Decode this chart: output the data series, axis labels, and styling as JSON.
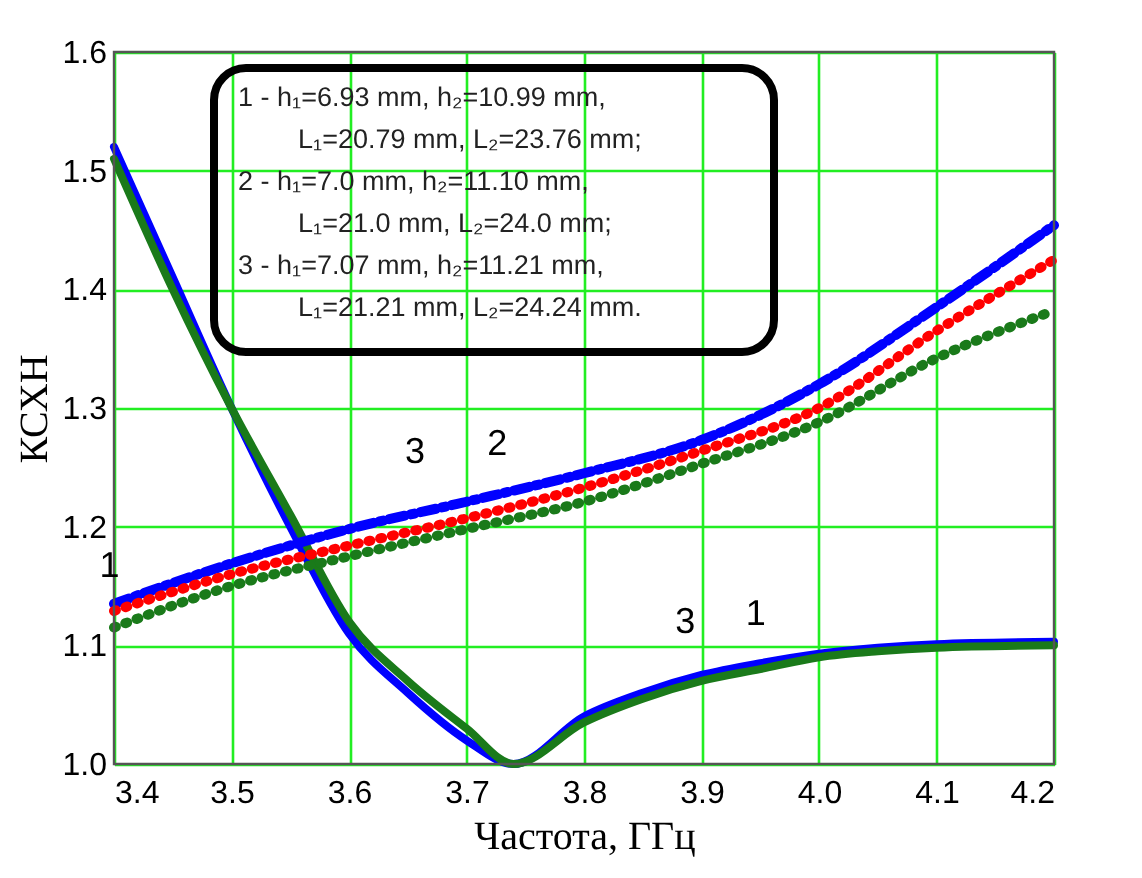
{
  "chart_data": {
    "type": "line",
    "xlabel": "Частота, ГГц",
    "ylabel": "КСХН",
    "xlim": [
      3.4,
      4.2
    ],
    "ylim": [
      1.0,
      1.6
    ],
    "xticks": [
      {
        "value": 3.4,
        "label": "3.4"
      },
      {
        "value": 3.5,
        "label": "3.5"
      },
      {
        "value": 3.6,
        "label": "3.6"
      },
      {
        "value": 3.7,
        "label": "3.7"
      },
      {
        "value": 3.8,
        "label": "3.8"
      },
      {
        "value": 3.9,
        "label": "3.9"
      },
      {
        "value": 4.0,
        "label": "4.0"
      },
      {
        "value": 4.1,
        "label": "4.1"
      },
      {
        "value": 4.2,
        "label": "4.2"
      }
    ],
    "yticks": [
      {
        "value": 1.0,
        "label": "1.0"
      },
      {
        "value": 1.1,
        "label": "1.1"
      },
      {
        "value": 1.2,
        "label": "1.2"
      },
      {
        "value": 1.3,
        "label": "1.3"
      },
      {
        "value": 1.4,
        "label": "1.4"
      },
      {
        "value": 1.5,
        "label": "1.5"
      },
      {
        "value": 1.6,
        "label": "1.6"
      }
    ],
    "grid": true,
    "marker": "none",
    "series": [
      {
        "color": "#0000ff",
        "line_style": "solid",
        "x": [
          3.4,
          3.45,
          3.5,
          3.55,
          3.6,
          3.65,
          3.7,
          3.74,
          3.8,
          3.85,
          3.9,
          3.95,
          4.0,
          4.05,
          4.1,
          4.2
        ],
        "values": [
          1.52,
          1.41,
          1.3,
          1.2,
          1.11,
          1.06,
          1.02,
          1.0,
          1.04,
          1.06,
          1.075,
          1.085,
          1.093,
          1.098,
          1.101,
          1.103
        ]
      },
      {
        "color": "#1a7a1a",
        "line_style": "solid",
        "x": [
          3.4,
          3.45,
          3.5,
          3.55,
          3.6,
          3.65,
          3.7,
          3.74,
          3.8,
          3.85,
          3.9,
          3.95,
          4.0,
          4.05,
          4.1,
          4.2
        ],
        "values": [
          1.51,
          1.4,
          1.3,
          1.21,
          1.12,
          1.07,
          1.03,
          1.0,
          1.035,
          1.055,
          1.07,
          1.08,
          1.09,
          1.095,
          1.098,
          1.1
        ]
      },
      {
        "color": "#0000ff",
        "line_style": "dashed",
        "x": [
          3.4,
          3.5,
          3.6,
          3.7,
          3.8,
          3.9,
          4.0,
          4.1,
          4.2
        ],
        "values": [
          1.135,
          1.169,
          1.198,
          1.221,
          1.245,
          1.273,
          1.32,
          1.385,
          1.454
        ]
      },
      {
        "color": "#ff0000",
        "line_style": "dotted",
        "x": [
          3.4,
          3.5,
          3.6,
          3.7,
          3.8,
          3.9,
          4.0,
          4.1,
          4.2
        ],
        "values": [
          1.129,
          1.16,
          1.184,
          1.207,
          1.233,
          1.264,
          1.3,
          1.365,
          1.425
        ]
      },
      {
        "color": "#1a7a1a",
        "line_style": "dotted",
        "x": [
          3.4,
          3.5,
          3.6,
          3.7,
          3.8,
          3.9,
          4.0,
          4.1,
          4.2
        ],
        "values": [
          1.115,
          1.15,
          1.175,
          1.198,
          1.221,
          1.253,
          1.288,
          1.342,
          1.382
        ]
      }
    ],
    "annotations": [
      "1 - h₁=6.93 mm, h₂=10.99 mm,\n     L₁=20.79 mm, L₂=23.76 mm;\n2 - h₁=7.0 mm, h₂=11.10 mm,\n     L₁=21.0 mm, L₂=24.0 mm;\n3 - h₁=7.07 mm, h₂=11.21 mm,\n     L₁=21.21 mm, L₂=24.24 mm.",
      {
        "text": "3",
        "x": 3.68,
        "y": 1.218
      },
      {
        "text": "2",
        "x": 3.75,
        "y": 1.225
      },
      {
        "text": "1",
        "x": 3.42,
        "y": 1.122
      },
      {
        "text": "3",
        "x": 3.91,
        "y": 1.075
      },
      {
        "text": "1",
        "x": 3.97,
        "y": 1.082
      }
    ]
  }
}
